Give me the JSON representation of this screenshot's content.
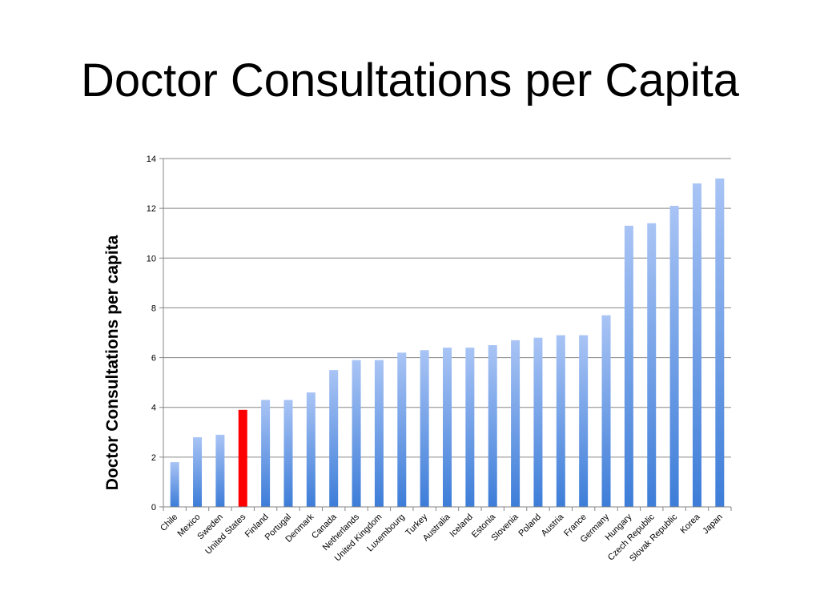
{
  "page": {
    "title": "Doctor Consultations per Capita"
  },
  "chart_data": {
    "type": "bar",
    "title": "Doctor Consultations per Capita",
    "xlabel": "",
    "ylabel": "Doctor Consultations per capita",
    "ylim": [
      0,
      14
    ],
    "yticks": [
      0,
      2,
      4,
      6,
      8,
      10,
      12,
      14
    ],
    "grid": true,
    "categories": [
      "Chile",
      "Mexico",
      "Sweden",
      "United States",
      "Finland",
      "Portugal",
      "Denmark",
      "Canada",
      "Netherlands",
      "United Kingdom",
      "Luxembourg",
      "Turkey",
      "Australia",
      "Iceland",
      "Estonia",
      "Slovenia",
      "Poland",
      "Austria",
      "France",
      "Germany",
      "Hungary",
      "Czech Republic",
      "Slovak Republic",
      "Korea",
      "Japan"
    ],
    "values": [
      1.8,
      2.8,
      2.9,
      3.9,
      4.3,
      4.3,
      4.6,
      5.5,
      5.9,
      5.9,
      6.2,
      6.3,
      6.4,
      6.4,
      6.5,
      6.7,
      6.8,
      6.9,
      6.9,
      7.7,
      11.3,
      11.4,
      12.1,
      13.0,
      13.2
    ],
    "highlight": "United States",
    "colors": {
      "bar_top": "#a9c4f5",
      "bar_bottom": "#3d7dd8",
      "highlight": "#ff0000",
      "grid": "#868686"
    }
  }
}
